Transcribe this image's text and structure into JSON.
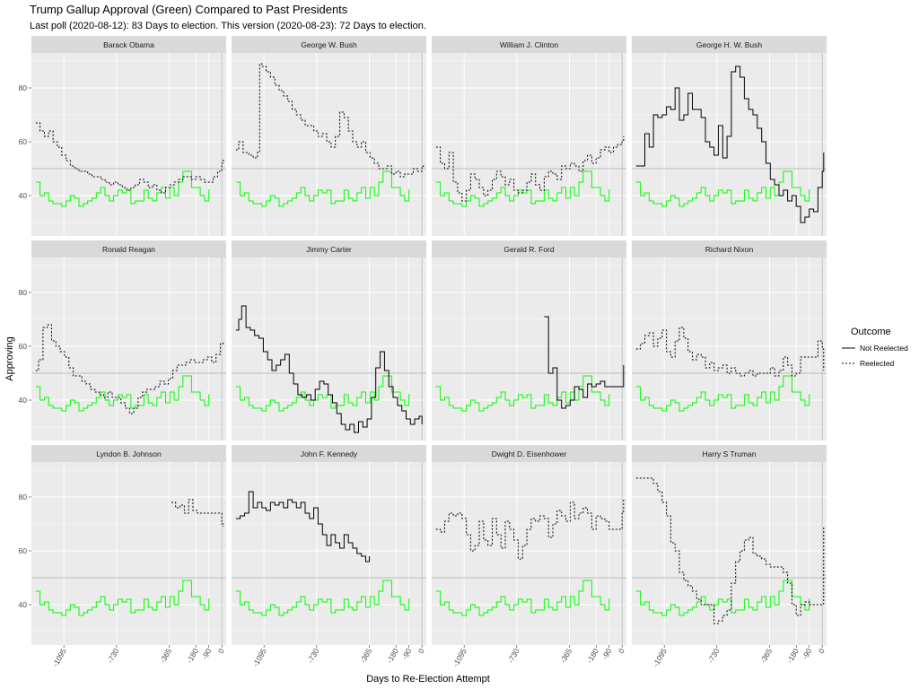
{
  "title": "Trump Gallup Approval (Green) Compared to Past Presidents",
  "subtitle": "Last poll (2020-08-12): 83 Days to election. This version (2020-08-23): 72 Days to election.",
  "xlabel": "Days to Re-Election Attempt",
  "ylabel": "Approving",
  "legend": {
    "title": "Outcome",
    "items": [
      {
        "label": "Not Reelected",
        "linetype": "solid"
      },
      {
        "label": "Reelected",
        "linetype": "dashed"
      }
    ]
  },
  "colors": {
    "trump": "#00ff00",
    "president": "#000000",
    "panel_bg": "#ebebeb",
    "strip_bg": "#d9d9d9",
    "grid": "#ffffff",
    "ref_line": "#bdbdbd"
  },
  "chart_data": {
    "type": "line",
    "facet_layout": "3 rows x 4 columns, shared axes",
    "x_ticks": [
      -1095,
      -730,
      -365,
      -180,
      -90,
      0
    ],
    "y_ticks": [
      40,
      60,
      80
    ],
    "xlim": [
      -1320,
      30
    ],
    "ylim": [
      25,
      93
    ],
    "hline": 50,
    "vline": 0,
    "legend_position": "right",
    "trump_series": {
      "name": "Trump",
      "x": [
        -1290,
        -1260,
        -1230,
        -1200,
        -1170,
        -1140,
        -1110,
        -1080,
        -1050,
        -1020,
        -990,
        -960,
        -930,
        -900,
        -870,
        -840,
        -810,
        -780,
        -750,
        -720,
        -690,
        -660,
        -630,
        -600,
        -570,
        -540,
        -510,
        -480,
        -450,
        -420,
        -390,
        -360,
        -330,
        -300,
        -270,
        -240,
        -210,
        -180,
        -150,
        -120,
        -90,
        -83
      ],
      "y": [
        45,
        40,
        41,
        38,
        37,
        37,
        36,
        38,
        40,
        39,
        36,
        37,
        38,
        39,
        41,
        43,
        40,
        38,
        40,
        42,
        41,
        42,
        37,
        38,
        38,
        42,
        39,
        38,
        41,
        43,
        39,
        43,
        40,
        45,
        49,
        49,
        43,
        43,
        40,
        38,
        42,
        42
      ]
    },
    "presidents": [
      {
        "name": "Barack Obama",
        "outcome": "Reelected",
        "x": [
          -1290,
          -1260,
          -1230,
          -1200,
          -1170,
          -1140,
          -1110,
          -1080,
          -1050,
          -1020,
          -990,
          -960,
          -930,
          -900,
          -870,
          -840,
          -810,
          -780,
          -750,
          -720,
          -690,
          -660,
          -630,
          -600,
          -570,
          -540,
          -510,
          -480,
          -450,
          -420,
          -390,
          -360,
          -330,
          -300,
          -270,
          -240,
          -210,
          -180,
          -150,
          -120,
          -90,
          -60,
          -30,
          0,
          10
        ],
        "y": [
          67,
          64,
          62,
          64,
          60,
          58,
          55,
          53,
          51,
          50,
          49,
          49,
          48,
          47,
          47,
          46,
          45,
          44,
          45,
          44,
          43,
          42,
          43,
          44,
          46,
          45,
          43,
          44,
          42,
          41,
          43,
          44,
          45,
          46,
          47,
          47,
          46,
          47,
          46,
          45,
          45,
          47,
          49,
          52,
          54
        ]
      },
      {
        "name": "George W. Bush",
        "outcome": "Reelected",
        "x": [
          -1290,
          -1270,
          -1240,
          -1200,
          -1170,
          -1140,
          -1125,
          -1110,
          -1080,
          -1050,
          -1020,
          -990,
          -960,
          -930,
          -900,
          -870,
          -840,
          -810,
          -780,
          -750,
          -720,
          -690,
          -660,
          -630,
          -600,
          -570,
          -540,
          -510,
          -480,
          -450,
          -420,
          -390,
          -360,
          -330,
          -300,
          -270,
          -240,
          -210,
          -180,
          -150,
          -120,
          -90,
          -60,
          -30,
          0,
          10
        ],
        "y": [
          57,
          60,
          56,
          55,
          54,
          56,
          89,
          88,
          86,
          84,
          81,
          79,
          77,
          75,
          72,
          70,
          68,
          66,
          66,
          64,
          62,
          63,
          60,
          58,
          62,
          71,
          69,
          64,
          60,
          58,
          60,
          56,
          54,
          52,
          50,
          50,
          51,
          48,
          49,
          47,
          48,
          48,
          50,
          49,
          51,
          50
        ]
      },
      {
        "name": "William J. Clinton",
        "outcome": "Reelected",
        "x": [
          -1290,
          -1260,
          -1230,
          -1200,
          -1170,
          -1140,
          -1110,
          -1080,
          -1050,
          -1020,
          -990,
          -960,
          -930,
          -900,
          -870,
          -840,
          -810,
          -780,
          -750,
          -720,
          -690,
          -660,
          -630,
          -600,
          -570,
          -540,
          -510,
          -480,
          -450,
          -420,
          -390,
          -360,
          -330,
          -300,
          -270,
          -240,
          -210,
          -180,
          -150,
          -120,
          -90,
          -60,
          -30,
          0,
          10
        ],
        "y": [
          58,
          52,
          50,
          56,
          45,
          41,
          38,
          42,
          48,
          46,
          43,
          40,
          42,
          46,
          49,
          47,
          44,
          46,
          42,
          41,
          42,
          45,
          48,
          44,
          42,
          47,
          49,
          48,
          46,
          51,
          50,
          52,
          51,
          49,
          53,
          55,
          52,
          54,
          57,
          58,
          56,
          58,
          59,
          60,
          62
        ]
      },
      {
        "name": "George H. W. Bush",
        "outcome": "Not Reelected",
        "x": [
          -1290,
          -1260,
          -1230,
          -1200,
          -1170,
          -1140,
          -1110,
          -1080,
          -1050,
          -1020,
          -990,
          -960,
          -930,
          -900,
          -870,
          -840,
          -810,
          -780,
          -750,
          -720,
          -690,
          -660,
          -630,
          -600,
          -570,
          -540,
          -510,
          -480,
          -450,
          -420,
          -390,
          -360,
          -330,
          -300,
          -270,
          -240,
          -210,
          -180,
          -150,
          -120,
          -90,
          -60,
          -30,
          0,
          10
        ],
        "y": [
          51,
          51,
          63,
          58,
          70,
          69,
          70,
          73,
          72,
          80,
          68,
          70,
          78,
          72,
          72,
          69,
          60,
          58,
          55,
          66,
          54,
          62,
          86,
          88,
          84,
          76,
          72,
          70,
          65,
          60,
          52,
          46,
          44,
          40,
          42,
          38,
          40,
          36,
          30,
          32,
          35,
          34,
          43,
          49,
          56
        ]
      },
      {
        "name": "Ronald Reagan",
        "outcome": "Reelected",
        "x": [
          -1290,
          -1270,
          -1240,
          -1210,
          -1180,
          -1150,
          -1120,
          -1090,
          -1060,
          -1030,
          -1000,
          -970,
          -940,
          -910,
          -880,
          -850,
          -820,
          -790,
          -760,
          -730,
          -700,
          -670,
          -640,
          -610,
          -580,
          -550,
          -520,
          -490,
          -460,
          -430,
          -400,
          -370,
          -340,
          -310,
          -280,
          -250,
          -220,
          -190,
          -160,
          -130,
          -100,
          -70,
          -40,
          -10,
          10
        ],
        "y": [
          51,
          55,
          67,
          68,
          62,
          60,
          58,
          56,
          52,
          49,
          49,
          47,
          46,
          44,
          43,
          42,
          41,
          43,
          41,
          41,
          39,
          37,
          35,
          37,
          41,
          43,
          44,
          44,
          45,
          47,
          46,
          48,
          51,
          53,
          53,
          54,
          55,
          54,
          54,
          55,
          56,
          54,
          57,
          61,
          62
        ]
      },
      {
        "name": "Jimmy Carter",
        "outcome": "Not Reelected",
        "x": [
          -1290,
          -1270,
          -1250,
          -1220,
          -1190,
          -1160,
          -1130,
          -1100,
          -1070,
          -1040,
          -1010,
          -980,
          -950,
          -920,
          -890,
          -860,
          -830,
          -800,
          -770,
          -740,
          -710,
          -680,
          -650,
          -620,
          -590,
          -560,
          -530,
          -500,
          -470,
          -440,
          -410,
          -380,
          -350,
          -320,
          -290,
          -260,
          -230,
          -200,
          -170,
          -140,
          -110,
          -80,
          -50,
          -20,
          0
        ],
        "y": [
          66,
          70,
          75,
          67,
          66,
          64,
          63,
          58,
          55,
          51,
          53,
          55,
          57,
          50,
          46,
          42,
          41,
          42,
          40,
          44,
          47,
          46,
          42,
          39,
          35,
          31,
          29,
          31,
          28,
          32,
          30,
          33,
          41,
          52,
          58,
          51,
          45,
          41,
          38,
          36,
          33,
          31,
          33,
          34,
          31
        ]
      },
      {
        "name": "Gerald R. Ford",
        "outcome": "Not Reelected",
        "x": [
          -540,
          -510,
          -480,
          -450,
          -420,
          -390,
          -360,
          -330,
          -300,
          -270,
          -240,
          -210,
          -180,
          -150,
          -120,
          -90,
          -60,
          -30,
          0,
          10
        ],
        "y": [
          71,
          50,
          52,
          40,
          37,
          38,
          40,
          45,
          44,
          41,
          46,
          45,
          46,
          47,
          45,
          45,
          45,
          45,
          45,
          53
        ]
      },
      {
        "name": "Richard Nixon",
        "outcome": "Reelected",
        "x": [
          -1290,
          -1260,
          -1230,
          -1200,
          -1170,
          -1140,
          -1110,
          -1080,
          -1050,
          -1020,
          -990,
          -960,
          -930,
          -900,
          -870,
          -840,
          -810,
          -780,
          -750,
          -720,
          -690,
          -660,
          -630,
          -600,
          -570,
          -540,
          -510,
          -480,
          -450,
          -420,
          -390,
          -360,
          -330,
          -300,
          -270,
          -240,
          -210,
          -180,
          -150,
          -120,
          -90,
          -60,
          -30,
          0,
          10
        ],
        "y": [
          59,
          61,
          64,
          65,
          60,
          63,
          66,
          58,
          56,
          62,
          67,
          63,
          58,
          55,
          57,
          56,
          52,
          54,
          51,
          52,
          53,
          50,
          52,
          50,
          49,
          50,
          51,
          49,
          50,
          50,
          50,
          52,
          49,
          51,
          56,
          53,
          49,
          50,
          56,
          56,
          56,
          56,
          62,
          59,
          51
        ]
      },
      {
        "name": "Lyndon B. Johnson",
        "outcome": "Reelected",
        "x": [
          -350,
          -320,
          -290,
          -260,
          -230,
          -200,
          -170,
          -140,
          -110,
          -80,
          -50,
          -20,
          0,
          10
        ],
        "y": [
          78,
          76,
          77,
          74,
          79,
          75,
          74,
          74,
          74,
          74,
          74,
          74,
          70,
          69
        ]
      },
      {
        "name": "John F. Kennedy",
        "outcome": "Not Reelected",
        "x": [
          -1290,
          -1260,
          -1230,
          -1200,
          -1170,
          -1140,
          -1110,
          -1080,
          -1050,
          -1020,
          -990,
          -960,
          -930,
          -900,
          -870,
          -840,
          -810,
          -780,
          -750,
          -720,
          -690,
          -660,
          -630,
          -600,
          -570,
          -540,
          -510,
          -480,
          -450,
          -420,
          -390,
          -365
        ],
        "y": [
          72,
          73,
          74,
          82,
          76,
          78,
          76,
          75,
          78,
          77,
          78,
          76,
          79,
          78,
          76,
          78,
          74,
          72,
          76,
          70,
          66,
          62,
          66,
          63,
          61,
          66,
          63,
          61,
          59,
          58,
          56,
          58
        ]
      },
      {
        "name": "Dwight D. Eisenhower",
        "outcome": "Reelected",
        "x": [
          -1290,
          -1260,
          -1230,
          -1200,
          -1170,
          -1140,
          -1110,
          -1080,
          -1050,
          -1020,
          -990,
          -960,
          -930,
          -900,
          -870,
          -840,
          -810,
          -780,
          -750,
          -720,
          -690,
          -660,
          -630,
          -600,
          -570,
          -540,
          -510,
          -480,
          -450,
          -420,
          -390,
          -360,
          -330,
          -300,
          -270,
          -240,
          -210,
          -180,
          -150,
          -120,
          -90,
          -60,
          -30,
          0,
          10
        ],
        "y": [
          68,
          67,
          71,
          74,
          73,
          74,
          72,
          66,
          60,
          62,
          71,
          64,
          62,
          72,
          66,
          61,
          71,
          68,
          64,
          57,
          62,
          68,
          72,
          71,
          73,
          72,
          65,
          70,
          75,
          73,
          71,
          78,
          72,
          74,
          76,
          74,
          68,
          73,
          72,
          71,
          68,
          68,
          68,
          74,
          79
        ]
      },
      {
        "name": "Harry S Truman",
        "outcome": "Reelected",
        "x": [
          -1290,
          -1260,
          -1230,
          -1200,
          -1170,
          -1140,
          -1110,
          -1080,
          -1050,
          -1020,
          -990,
          -960,
          -930,
          -900,
          -870,
          -840,
          -810,
          -780,
          -750,
          -720,
          -690,
          -660,
          -630,
          -600,
          -570,
          -540,
          -510,
          -480,
          -450,
          -420,
          -390,
          -360,
          -330,
          -300,
          -270,
          -240,
          -210,
          -180,
          -150,
          -120,
          -90,
          -60,
          -30,
          0,
          10
        ],
        "y": [
          87,
          87,
          87,
          87,
          85,
          82,
          78,
          73,
          63,
          60,
          52,
          49,
          47,
          45,
          42,
          40,
          40,
          40,
          33,
          34,
          36,
          38,
          48,
          56,
          60,
          64,
          65,
          59,
          58,
          57,
          55,
          54,
          54,
          54,
          52,
          48,
          40,
          36,
          40,
          41,
          40,
          40,
          40,
          40,
          69
        ]
      }
    ]
  }
}
